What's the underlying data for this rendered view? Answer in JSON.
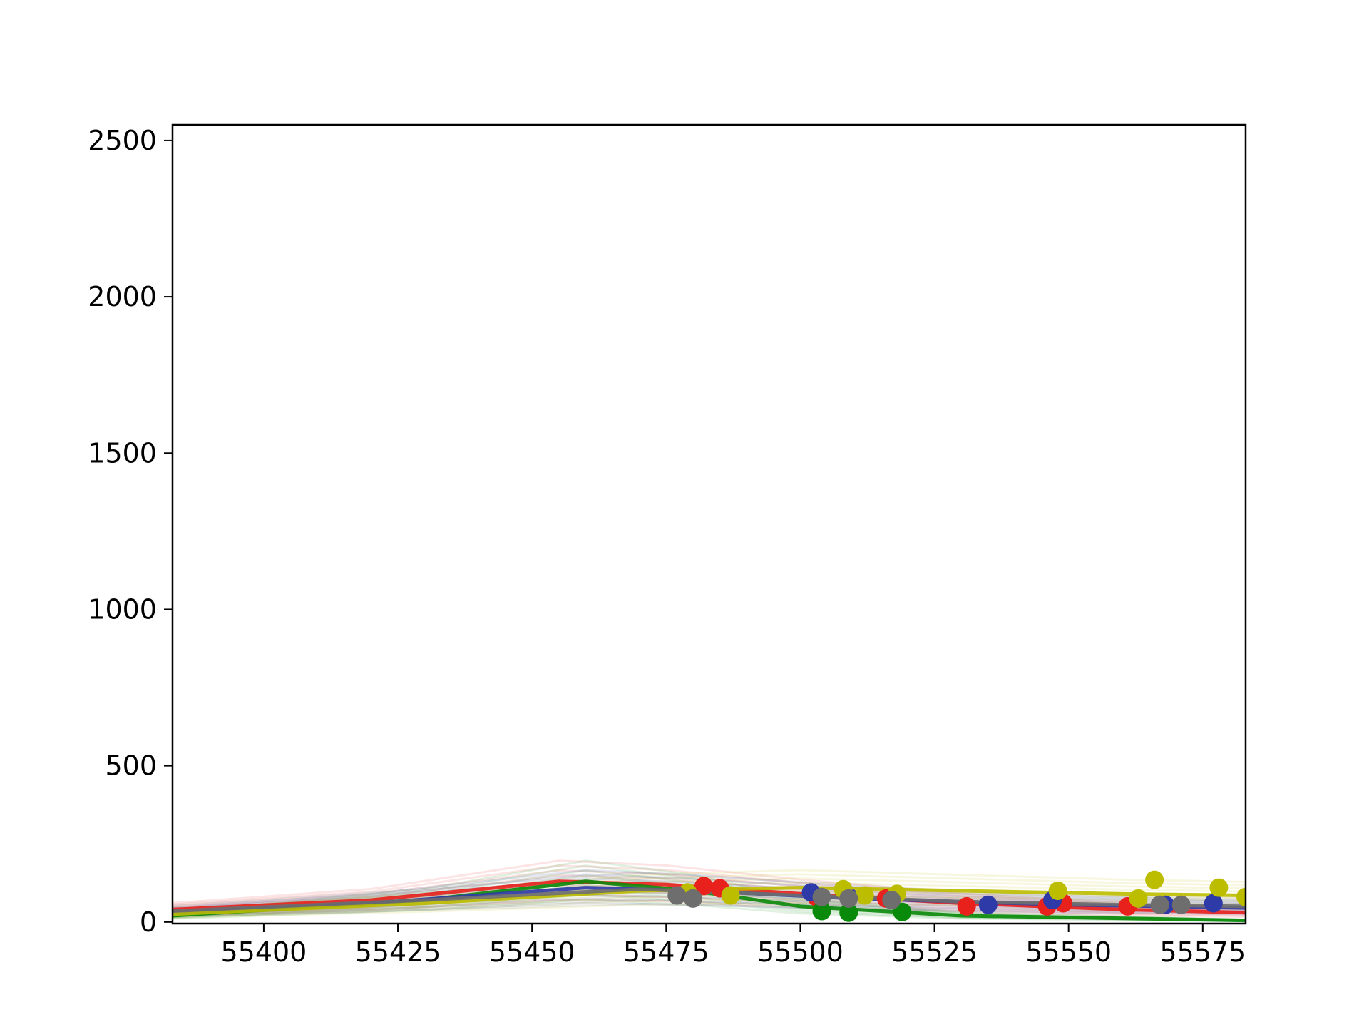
{
  "chart_data": {
    "type": "scatter",
    "title": "",
    "xlabel": "",
    "ylabel": "",
    "xlim": [
      55383,
      55583
    ],
    "ylim": [
      -5,
      2550
    ],
    "grid": false,
    "legend": "none",
    "x_ticks": [
      "55400",
      "55425",
      "55450",
      "55475",
      "55500",
      "55525",
      "55550",
      "55575"
    ],
    "y_ticks": [
      "0",
      "500",
      "1000",
      "1500",
      "2000",
      "2500"
    ],
    "colors": {
      "red": "#e8211d",
      "green": "#0a8a0a",
      "blue": "#2d3aa8",
      "yellow": "#bdbd00",
      "gray": "#6e6e6e",
      "orange": "#f08020"
    },
    "series": [
      {
        "color_key": "red",
        "points": [
          [
            55482,
            115
          ],
          [
            55485,
            108
          ],
          [
            55503,
            80
          ],
          [
            55516,
            75
          ],
          [
            55531,
            50
          ],
          [
            55546,
            50
          ],
          [
            55549,
            60
          ],
          [
            55561,
            50
          ]
        ],
        "model": [
          [
            55383,
            40
          ],
          [
            55420,
            70
          ],
          [
            55455,
            130
          ],
          [
            55475,
            120
          ],
          [
            55500,
            90
          ],
          [
            55530,
            60
          ],
          [
            55560,
            40
          ],
          [
            55583,
            30
          ]
        ]
      },
      {
        "color_key": "green",
        "points": [
          [
            55504,
            35
          ],
          [
            55509,
            30
          ],
          [
            55519,
            32
          ]
        ],
        "model": [
          [
            55383,
            20
          ],
          [
            55430,
            70
          ],
          [
            55460,
            130
          ],
          [
            55480,
            100
          ],
          [
            55500,
            50
          ],
          [
            55530,
            20
          ],
          [
            55583,
            5
          ]
        ]
      },
      {
        "color_key": "blue",
        "points": [
          [
            55502,
            95
          ],
          [
            55509,
            80
          ],
          [
            55535,
            55
          ],
          [
            55547,
            70
          ],
          [
            55568,
            55
          ],
          [
            55577,
            60
          ]
        ],
        "model": [
          [
            55383,
            30
          ],
          [
            55420,
            60
          ],
          [
            55460,
            110
          ],
          [
            55480,
            100
          ],
          [
            55510,
            75
          ],
          [
            55550,
            55
          ],
          [
            55583,
            45
          ]
        ]
      },
      {
        "color_key": "yellow",
        "points": [
          [
            55479,
            95
          ],
          [
            55487,
            85
          ],
          [
            55508,
            105
          ],
          [
            55512,
            85
          ],
          [
            55518,
            90
          ],
          [
            55548,
            100
          ],
          [
            55563,
            75
          ],
          [
            55566,
            135
          ],
          [
            55578,
            110
          ],
          [
            55583,
            80
          ]
        ],
        "model": [
          [
            55383,
            25
          ],
          [
            55430,
            60
          ],
          [
            55470,
            100
          ],
          [
            55500,
            110
          ],
          [
            55530,
            100
          ],
          [
            55560,
            90
          ],
          [
            55583,
            85
          ]
        ]
      },
      {
        "color_key": "gray",
        "points": [
          [
            55477,
            85
          ],
          [
            55480,
            75
          ],
          [
            55504,
            80
          ],
          [
            55509,
            75
          ],
          [
            55517,
            70
          ],
          [
            55567,
            55
          ],
          [
            55571,
            55
          ]
        ],
        "model": [
          [
            55383,
            35
          ],
          [
            55430,
            70
          ],
          [
            55470,
            105
          ],
          [
            55500,
            85
          ],
          [
            55530,
            65
          ],
          [
            55560,
            55
          ],
          [
            55583,
            50
          ]
        ]
      }
    ]
  }
}
